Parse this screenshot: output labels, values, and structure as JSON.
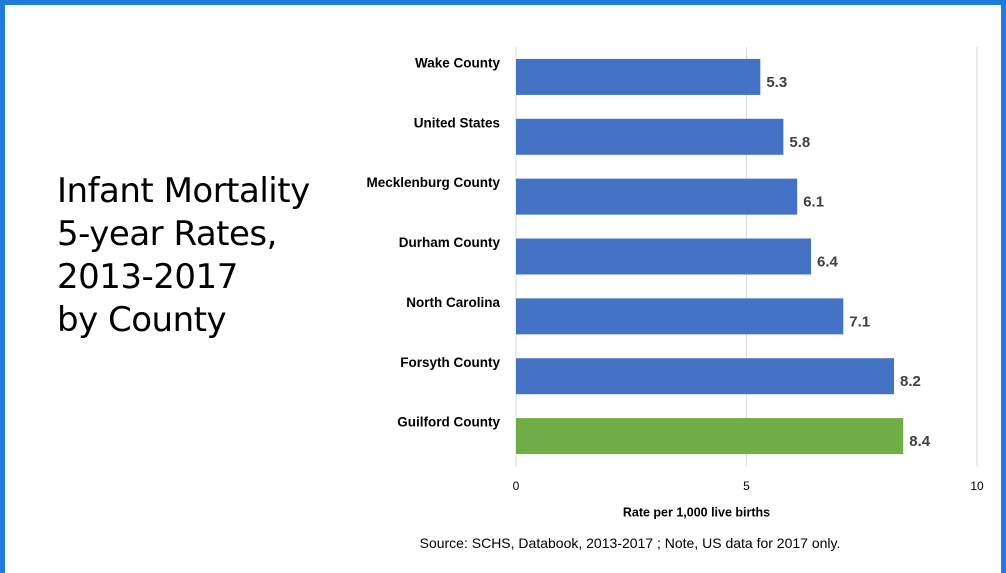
{
  "slide": {
    "title_lines": [
      "Infant Mortality",
      "5-year Rates,",
      "2013-2017",
      "by County"
    ],
    "source_note": "Source: SCHS, Databook, 2013-2017 ; Note, US data for 2017 only.",
    "frame_color": "#1F7BD9"
  },
  "chart_data": {
    "type": "bar",
    "orientation": "horizontal",
    "categories": [
      "Wake County",
      "United States",
      "Mecklenburg County",
      "Durham County",
      "North Carolina",
      "Forsyth County",
      "Guilford County"
    ],
    "values": [
      5.3,
      5.8,
      6.1,
      6.4,
      7.1,
      8.2,
      8.4
    ],
    "value_labels": [
      "5.3",
      "5.8",
      "6.1",
      "6.4",
      "7.1",
      "8.2",
      "8.4"
    ],
    "bar_colors": [
      "#4472C4",
      "#4472C4",
      "#4472C4",
      "#4472C4",
      "#4472C4",
      "#4472C4",
      "#70AD47"
    ],
    "xlabel": "Rate per 1,000 live births",
    "xlim": [
      0,
      10
    ],
    "xticks": [
      0,
      5,
      10
    ],
    "xtick_labels": [
      "0",
      "5",
      "10"
    ],
    "grid": true,
    "legend": "none"
  }
}
